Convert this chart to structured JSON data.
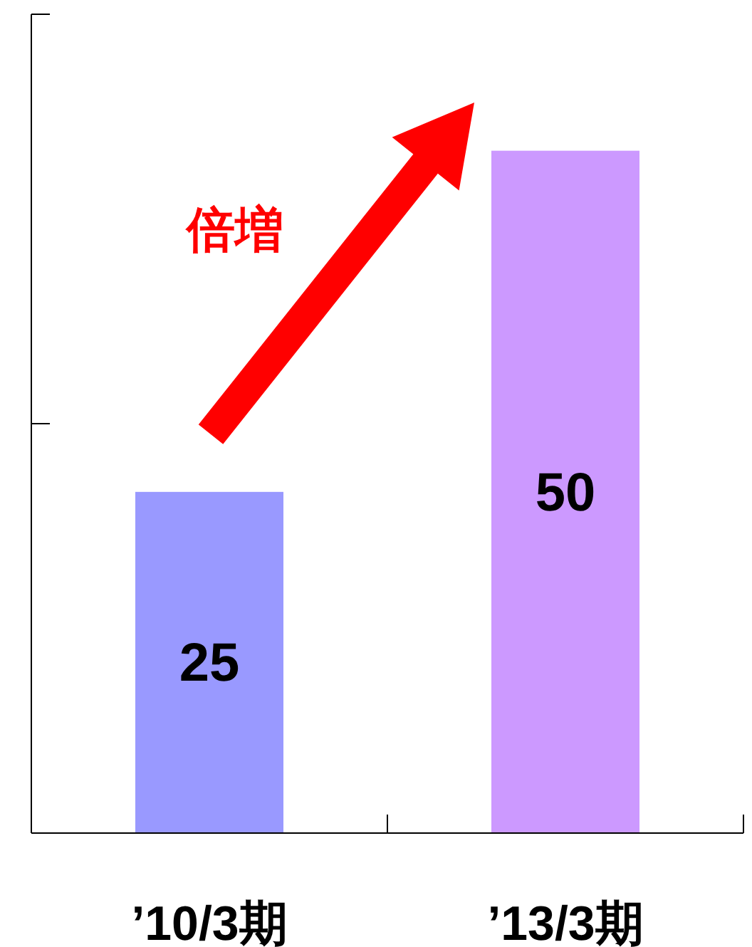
{
  "chart_data": {
    "type": "bar",
    "categories": [
      "’10/3期",
      "’13/3期"
    ],
    "values": [
      25,
      50
    ],
    "colors": [
      "#9999ff",
      "#cc99ff"
    ],
    "ylim": [
      0,
      60
    ],
    "yticks": [
      {
        "value": 0,
        "label": null
      },
      {
        "value": 30,
        "label": null
      },
      {
        "value": 60,
        "label": null
      }
    ],
    "tick_labels": "x",
    "data_labels": true,
    "annotations": [
      "倍増"
    ],
    "grid": false
  }
}
